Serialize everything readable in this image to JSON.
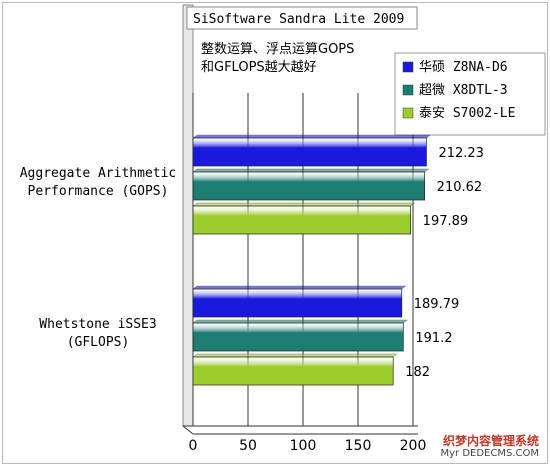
{
  "chart_data": {
    "type": "bar",
    "orientation": "horizontal",
    "title": "SiSoftware Sandra Lite 2009",
    "subtitle": [
      "整数运算、浮点运算GOPS",
      "和GFLOPS越大越好"
    ],
    "categories": [
      [
        "Aggregate Arithmetic",
        "Performance (GOPS)"
      ],
      [
        "Whetstone iSSE3",
        "(GFLOPS)"
      ]
    ],
    "series": [
      {
        "name": "华硕  Z8NA-D6",
        "values": [
          212.23,
          189.79
        ],
        "value_labels": [
          "212.23",
          "189.79"
        ],
        "color": "#1a1adf"
      },
      {
        "name": "超微  X8DTL-3",
        "values": [
          210.62,
          191.2
        ],
        "value_labels": [
          "210.62",
          "191.2"
        ],
        "color": "#1d7d73"
      },
      {
        "name": "泰安  S7002-LE",
        "values": [
          197.89,
          182
        ],
        "value_labels": [
          "197.89",
          "182"
        ],
        "color": "#9ccc2e"
      }
    ],
    "xlim": [
      0,
      200
    ],
    "xticks": [
      "0",
      "50",
      "100",
      "150",
      "200"
    ],
    "grid": "vertical",
    "legend_position": "top-right"
  },
  "watermark": {
    "line1": "织梦内容管理系统",
    "line2": "Myr DEDECMS.COM"
  }
}
